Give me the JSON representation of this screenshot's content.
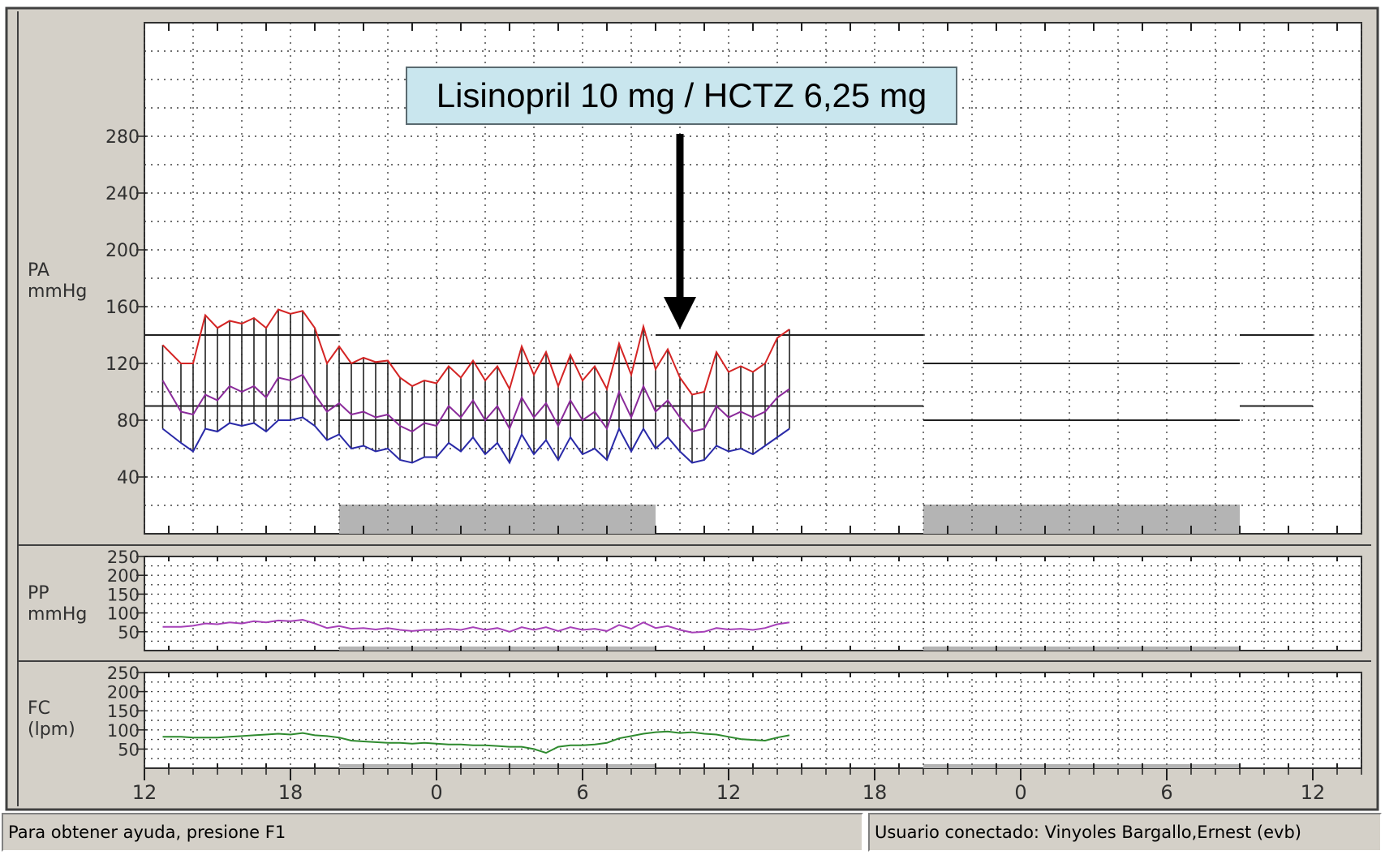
{
  "status_bar": {
    "help_text": "Para obtener ayuda, presione F1",
    "user_text": "Usuario conectado: Vinyoles Bargallo,Ernest (evb)"
  },
  "colors": {
    "systolic": "#d42424",
    "mean": "#8a2a9a",
    "diastolic": "#2a2aa8",
    "pulse_pressure": "#a640b8",
    "heart_rate": "#2e8a2e",
    "night_band": "#b4b4b4",
    "panel": "#d4d0c8"
  },
  "chart_data": [
    {
      "type": "line",
      "panel": "PA",
      "ylabel": [
        "PA",
        "mmHg"
      ],
      "yticks": [
        40,
        80,
        120,
        160,
        200,
        240,
        280
      ],
      "ylim": [
        0,
        360
      ],
      "xlim": [
        12,
        62
      ],
      "xticks": [
        12,
        18,
        24,
        30,
        36,
        42,
        48,
        54,
        60
      ],
      "xtick_labels": [
        "12",
        "18",
        "0",
        "6",
        "12",
        "18",
        "0",
        "6",
        "12"
      ],
      "grid": true,
      "night_bands": [
        [
          20,
          33
        ],
        [
          44,
          57
        ]
      ],
      "annotation": {
        "text": "Lisinopril 10 mg / HCTZ 6,25 mg",
        "x": 34
      },
      "reference_lines": [
        {
          "x": [
            12,
            20
          ],
          "y": 140
        },
        {
          "x": [
            12,
            20
          ],
          "y": 90
        },
        {
          "x": [
            20,
            33
          ],
          "y": 120
        },
        {
          "x": [
            20,
            33
          ],
          "y": 80
        },
        {
          "x": [
            33,
            44
          ],
          "y": 140
        },
        {
          "x": [
            33,
            44
          ],
          "y": 90
        },
        {
          "x": [
            44,
            57
          ],
          "y": 120
        },
        {
          "x": [
            44,
            57
          ],
          "y": 80
        },
        {
          "x": [
            57,
            60
          ],
          "y": 140
        },
        {
          "x": [
            57,
            60
          ],
          "y": 90
        }
      ],
      "x": [
        12.75,
        13.5,
        14.0,
        14.5,
        15.0,
        15.5,
        16.0,
        16.5,
        17.0,
        17.5,
        18.0,
        18.5,
        19.0,
        19.5,
        20.0,
        20.5,
        21.0,
        21.5,
        22.0,
        22.5,
        23.0,
        23.5,
        24.0,
        24.5,
        25.0,
        25.5,
        26.0,
        26.5,
        27.0,
        27.5,
        28.0,
        28.5,
        29.0,
        29.5,
        30.0,
        30.5,
        31.0,
        31.5,
        32.0,
        32.5,
        33.0,
        33.5,
        34.0,
        34.5,
        35.0,
        35.5,
        36.0,
        36.5,
        37.0,
        37.5,
        38.0,
        38.5
      ],
      "series": [
        {
          "name": "",
          "key": "systolic",
          "values": [
            133,
            120,
            120,
            154,
            145,
            150,
            148,
            152,
            145,
            158,
            155,
            157,
            145,
            120,
            132,
            120,
            124,
            121,
            122,
            110,
            104,
            108,
            106,
            118,
            110,
            122,
            108,
            118,
            102,
            132,
            112,
            128,
            104,
            126,
            108,
            118,
            102,
            134,
            112,
            146,
            116,
            130,
            110,
            98,
            100,
            128,
            114,
            118,
            114,
            120,
            138,
            144
          ]
        },
        {
          "name": "",
          "key": "mean",
          "values": [
            108,
            86,
            84,
            98,
            94,
            104,
            100,
            104,
            96,
            110,
            108,
            112,
            98,
            86,
            92,
            84,
            86,
            82,
            84,
            76,
            72,
            78,
            76,
            90,
            82,
            94,
            80,
            90,
            74,
            96,
            82,
            92,
            76,
            94,
            80,
            86,
            74,
            100,
            82,
            104,
            86,
            94,
            82,
            72,
            74,
            90,
            82,
            86,
            82,
            86,
            96,
            102
          ]
        },
        {
          "name": "",
          "key": "diastolic",
          "values": [
            74,
            64,
            58,
            74,
            72,
            78,
            76,
            78,
            72,
            80,
            80,
            82,
            76,
            66,
            70,
            60,
            62,
            58,
            60,
            52,
            50,
            54,
            54,
            64,
            58,
            68,
            56,
            64,
            50,
            70,
            56,
            66,
            52,
            68,
            56,
            60,
            52,
            74,
            58,
            74,
            60,
            68,
            58,
            50,
            52,
            62,
            58,
            60,
            56,
            62,
            68,
            74
          ]
        }
      ]
    },
    {
      "type": "line",
      "panel": "PP",
      "ylabel": [
        "PP",
        "mmHg"
      ],
      "yticks": [
        50,
        100,
        150,
        200,
        250
      ],
      "ytick_labels": [
        "50",
        "100",
        "150",
        "200",
        "250"
      ],
      "ylim": [
        0,
        250
      ],
      "xlim": [
        12,
        62
      ],
      "grid": true,
      "x": [
        12.75,
        13.5,
        14.0,
        14.5,
        15.0,
        15.5,
        16.0,
        16.5,
        17.0,
        17.5,
        18.0,
        18.5,
        19.0,
        19.5,
        20.0,
        20.5,
        21.0,
        21.5,
        22.0,
        22.5,
        23.0,
        23.5,
        24.0,
        24.5,
        25.0,
        25.5,
        26.0,
        26.5,
        27.0,
        27.5,
        28.0,
        28.5,
        29.0,
        29.5,
        30.0,
        30.5,
        31.0,
        31.5,
        32.0,
        32.5,
        33.0,
        33.5,
        34.0,
        34.5,
        35.0,
        35.5,
        36.0,
        36.5,
        37.0,
        37.5,
        38.0,
        38.5
      ],
      "series": [
        {
          "name": "",
          "key": "pulse_pressure",
          "values": [
            63,
            63,
            66,
            72,
            70,
            75,
            72,
            78,
            75,
            80,
            78,
            82,
            72,
            60,
            65,
            58,
            60,
            56,
            60,
            55,
            52,
            55,
            55,
            58,
            55,
            62,
            55,
            60,
            50,
            62,
            55,
            62,
            52,
            62,
            55,
            58,
            52,
            68,
            58,
            75,
            60,
            65,
            55,
            48,
            50,
            60,
            56,
            58,
            55,
            60,
            70,
            75
          ]
        }
      ]
    },
    {
      "type": "line",
      "panel": "FC",
      "ylabel": [
        "FC",
        "(lpm)"
      ],
      "yticks": [
        50,
        100,
        150,
        200,
        250
      ],
      "ytick_labels": [
        "50",
        "100",
        "150",
        "200",
        "250"
      ],
      "ylim": [
        0,
        250
      ],
      "xlim": [
        12,
        62
      ],
      "grid": true,
      "x": [
        12.75,
        13.5,
        14.0,
        14.5,
        15.0,
        15.5,
        16.0,
        16.5,
        17.0,
        17.5,
        18.0,
        18.5,
        19.0,
        19.5,
        20.0,
        20.5,
        21.0,
        21.5,
        22.0,
        22.5,
        23.0,
        23.5,
        24.0,
        24.5,
        25.0,
        25.5,
        26.0,
        26.5,
        27.0,
        27.5,
        28.0,
        28.5,
        29.0,
        29.5,
        30.0,
        30.5,
        31.0,
        31.5,
        32.0,
        32.5,
        33.0,
        33.5,
        34.0,
        34.5,
        35.0,
        35.5,
        36.0,
        36.5,
        37.0,
        37.5,
        38.0,
        38.5
      ],
      "series": [
        {
          "name": "",
          "key": "heart_rate",
          "values": [
            82,
            82,
            80,
            80,
            80,
            82,
            84,
            86,
            88,
            90,
            88,
            92,
            86,
            84,
            80,
            72,
            70,
            68,
            66,
            66,
            64,
            66,
            64,
            62,
            62,
            60,
            60,
            58,
            56,
            56,
            50,
            40,
            56,
            60,
            60,
            62,
            66,
            78,
            84,
            90,
            94,
            96,
            92,
            94,
            90,
            88,
            82,
            76,
            74,
            72,
            80,
            86
          ]
        }
      ]
    }
  ]
}
